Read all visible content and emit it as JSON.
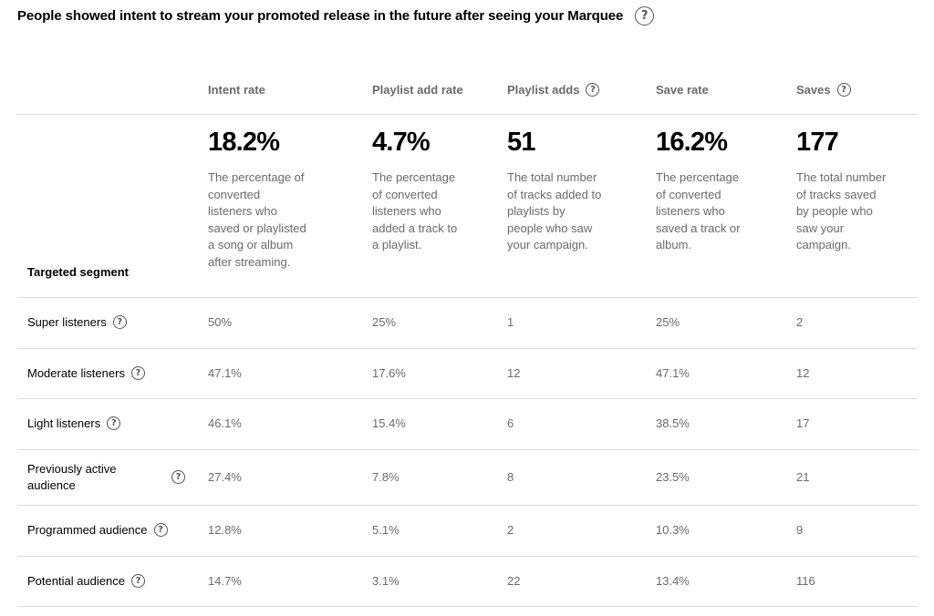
{
  "title": "People showed intent to stream your promoted release in the future after seeing your Marquee",
  "help_glyph": "?",
  "columns": [
    {
      "label": "Intent rate",
      "has_help": false,
      "big": "18.2%",
      "desc": "The percentage of converted listeners who saved or playlisted a song or album after streaming."
    },
    {
      "label": "Playlist add rate",
      "has_help": false,
      "big": "4.7%",
      "desc": "The percentage of converted listeners who added a track to a playlist."
    },
    {
      "label": "Playlist adds",
      "has_help": true,
      "big": "51",
      "desc": "The total number of tracks added to playlists by people who saw your campaign."
    },
    {
      "label": "Save rate",
      "has_help": false,
      "big": "16.2%",
      "desc": "The percentage of converted listeners who saved a track or album."
    },
    {
      "label": "Saves",
      "has_help": true,
      "big": "177",
      "desc": "The total number of tracks saved by people who saw your campaign."
    }
  ],
  "segment_header": "Targeted segment",
  "rows": [
    {
      "name": "Super listeners",
      "values": [
        "50%",
        "25%",
        "1",
        "25%",
        "2"
      ]
    },
    {
      "name": "Moderate listeners",
      "values": [
        "47.1%",
        "17.6%",
        "12",
        "47.1%",
        "12"
      ]
    },
    {
      "name": "Light listeners",
      "values": [
        "46.1%",
        "15.4%",
        "6",
        "38.5%",
        "17"
      ]
    },
    {
      "name": "Previously active audience",
      "values": [
        "27.4%",
        "7.8%",
        "8",
        "23.5%",
        "21"
      ]
    },
    {
      "name": "Programmed audience",
      "values": [
        "12.8%",
        "5.1%",
        "2",
        "10.3%",
        "9"
      ]
    },
    {
      "name": "Potential audience",
      "values": [
        "14.7%",
        "3.1%",
        "22",
        "13.4%",
        "116"
      ]
    }
  ]
}
